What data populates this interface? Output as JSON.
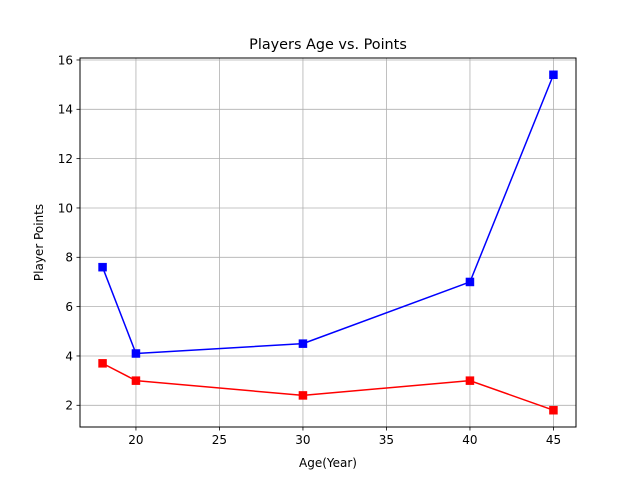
{
  "chart_data": {
    "type": "line",
    "title": "Players Age vs. Points",
    "xlabel": "Age(Year)",
    "ylabel": "Player Points",
    "x": [
      18,
      20,
      30,
      40,
      45
    ],
    "xlim": [
      16.65,
      46.35
    ],
    "ylim": [
      1.12,
      16.08
    ],
    "xticks": [
      20,
      25,
      30,
      35,
      40,
      45
    ],
    "yticks": [
      2,
      4,
      6,
      8,
      10,
      12,
      14,
      16
    ],
    "grid": true,
    "series": [
      {
        "values": [
          7.6,
          4.1,
          4.5,
          7.0,
          15.4
        ],
        "color": "#0000ff",
        "marker": "square"
      },
      {
        "values": [
          3.7,
          3.0,
          2.4,
          3.0,
          1.8
        ],
        "color": "#ff0000",
        "marker": "square"
      }
    ]
  }
}
